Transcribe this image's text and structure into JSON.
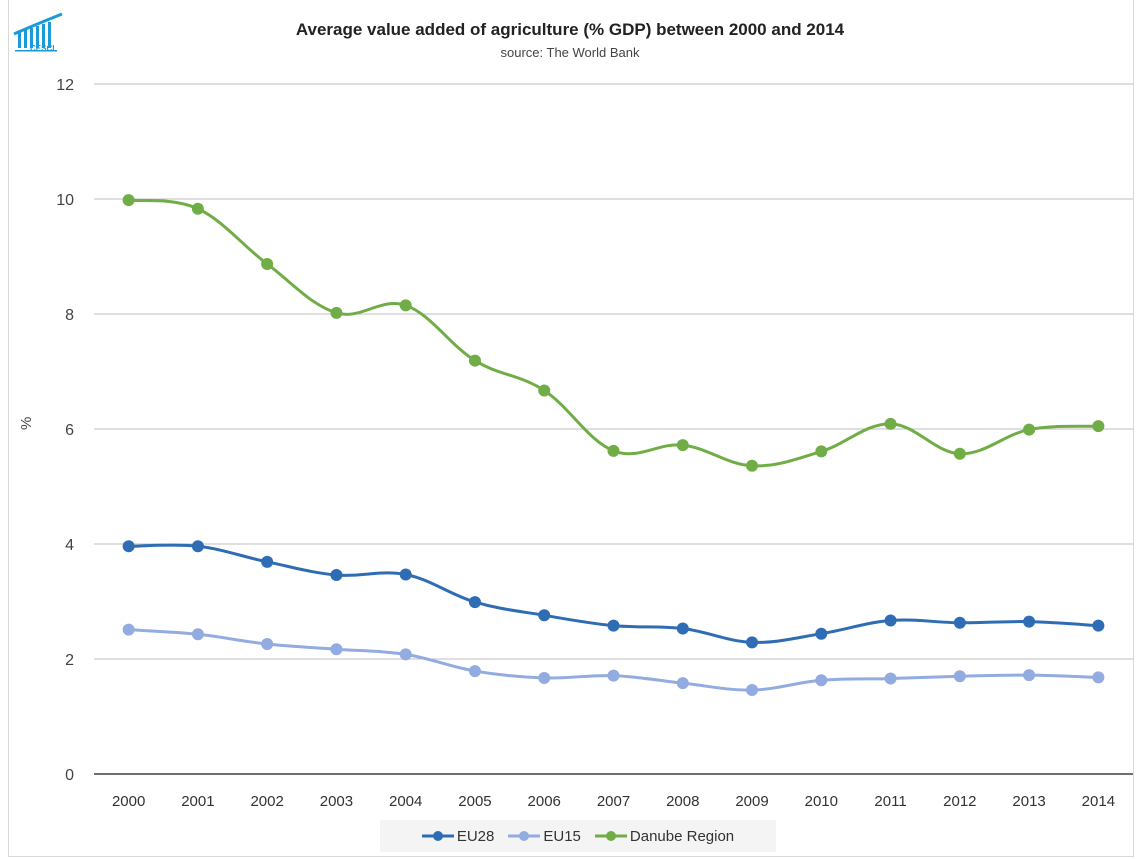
{
  "header": {
    "title": "Average value added of agriculture (% GDP) between 2000 and 2014",
    "subtitle": "source: The World Bank",
    "logo_text": "CESCI"
  },
  "chart_data": {
    "type": "line",
    "title": "Average value added of agriculture (% GDP) between 2000 and 2014",
    "subtitle": "source: The World Bank",
    "xlabel": "",
    "ylabel": "%",
    "x": [
      "2000",
      "2001",
      "2002",
      "2003",
      "2004",
      "2005",
      "2006",
      "2007",
      "2008",
      "2009",
      "2010",
      "2011",
      "2012",
      "2013",
      "2014"
    ],
    "ylim": [
      0,
      12
    ],
    "yticks": [
      0,
      2,
      4,
      6,
      8,
      10,
      12
    ],
    "grid": true,
    "smooth": true,
    "legend_position": "bottom",
    "series": [
      {
        "name": "EU28",
        "color": "#2e6db4",
        "values": [
          3.96,
          3.96,
          3.69,
          3.46,
          3.47,
          2.99,
          2.76,
          2.58,
          2.53,
          2.29,
          2.44,
          2.67,
          2.63,
          2.65,
          2.58
        ]
      },
      {
        "name": "EU15",
        "color": "#92abe0",
        "values": [
          2.51,
          2.43,
          2.26,
          2.17,
          2.08,
          1.79,
          1.67,
          1.71,
          1.58,
          1.46,
          1.63,
          1.66,
          1.7,
          1.72,
          1.68
        ]
      },
      {
        "name": "Danube Region",
        "color": "#70ad47",
        "values": [
          9.98,
          9.83,
          8.87,
          8.02,
          8.15,
          7.19,
          6.67,
          5.62,
          5.72,
          5.36,
          5.61,
          6.09,
          5.57,
          5.99,
          6.05
        ]
      }
    ]
  }
}
